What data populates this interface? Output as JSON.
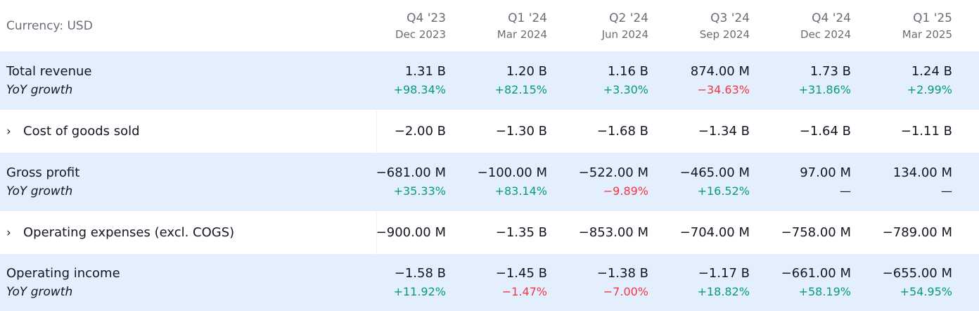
{
  "currency_label": "Currency: USD",
  "periods": [
    {
      "quarter": "Q4 '23",
      "date": "Dec 2023"
    },
    {
      "quarter": "Q1 '24",
      "date": "Mar 2024"
    },
    {
      "quarter": "Q2 '24",
      "date": "Jun 2024"
    },
    {
      "quarter": "Q3 '24",
      "date": "Sep 2024"
    },
    {
      "quarter": "Q4 '24",
      "date": "Dec 2024"
    },
    {
      "quarter": "Q1 '25",
      "date": "Mar 2025"
    }
  ],
  "rows": [
    {
      "label": "Total revenue",
      "sub_label": "YoY growth",
      "values": [
        "1.31 B",
        "1.20 B",
        "1.16 B",
        "874.00 M",
        "1.73 B",
        "1.24 B"
      ],
      "changes": [
        "+98.34%",
        "+82.15%",
        "+3.30%",
        "−34.63%",
        "+31.86%",
        "+2.99%"
      ]
    },
    {
      "label": "Cost of goods sold",
      "expandable": true,
      "chevron": "›",
      "values": [
        "−2.00 B",
        "−1.30 B",
        "−1.68 B",
        "−1.34 B",
        "−1.64 B",
        "−1.11 B"
      ]
    },
    {
      "label": "Gross profit",
      "sub_label": "YoY growth",
      "values": [
        "−681.00 M",
        "−100.00 M",
        "−522.00 M",
        "−465.00 M",
        "97.00 M",
        "134.00 M"
      ],
      "changes": [
        "+35.33%",
        "+83.14%",
        "−9.89%",
        "+16.52%",
        "—",
        "—"
      ]
    },
    {
      "label": "Operating expenses (excl. COGS)",
      "expandable": true,
      "chevron": "›",
      "values": [
        "−900.00 M",
        "−1.35 B",
        "−853.00 M",
        "−704.00 M",
        "−758.00 M",
        "−789.00 M"
      ]
    },
    {
      "label": "Operating income",
      "sub_label": "YoY growth",
      "values": [
        "−1.58 B",
        "−1.45 B",
        "−1.38 B",
        "−1.17 B",
        "−661.00 M",
        "−655.00 M"
      ],
      "changes": [
        "+11.92%",
        "−1.47%",
        "−7.00%",
        "+18.82%",
        "+58.19%",
        "+54.95%"
      ]
    }
  ],
  "colors": {
    "positive": "#089981",
    "negative": "#f23645",
    "row_highlight": "#e3effd",
    "muted_text": "#6a6d78"
  }
}
